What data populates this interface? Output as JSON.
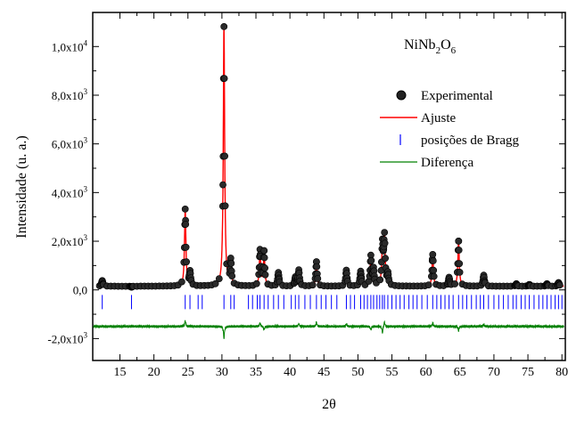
{
  "chart_data": {
    "type": "scatter",
    "title": "",
    "annotation": "NiNb2O6",
    "annotation_parts": {
      "base1": "NiNb",
      "sub1": "2",
      "base2": "O",
      "sub2": "6"
    },
    "xlabel": "2θ",
    "ylabel": "Intensidade (u. a.)",
    "xlim": [
      11,
      80.5
    ],
    "ylim": [
      -2900,
      11400
    ],
    "x_ticks": [
      15,
      20,
      25,
      30,
      35,
      40,
      45,
      50,
      55,
      60,
      65,
      70,
      75,
      80
    ],
    "x_tick_labels": [
      "15",
      "20",
      "25",
      "30",
      "35",
      "40",
      "45",
      "50",
      "55",
      "60",
      "65",
      "70",
      "75",
      "80"
    ],
    "y_ticks": [
      -2000,
      0,
      2000,
      4000,
      6000,
      8000,
      10000
    ],
    "y_tick_labels": [
      {
        "base": "-2,0x10",
        "exp": "3"
      },
      {
        "base": "0,0",
        "exp": ""
      },
      {
        "base": "2,0x10",
        "exp": "3"
      },
      {
        "base": "4,0x10",
        "exp": "3"
      },
      {
        "base": "6,0x10",
        "exp": "3"
      },
      {
        "base": "8,0x10",
        "exp": "3"
      },
      {
        "base": "1,0x10",
        "exp": "4"
      }
    ],
    "legend_position": "top-right",
    "series": [
      {
        "name": "Experimental",
        "kind": "scatter",
        "color": "#000000"
      },
      {
        "name": "Ajuste",
        "kind": "line",
        "color": "#ff0000"
      },
      {
        "name": "posições de Bragg",
        "kind": "ticks",
        "color": "#0000ff"
      },
      {
        "name": "Diferença",
        "kind": "line",
        "color": "#008000"
      }
    ],
    "background_level": 150,
    "peaks": [
      {
        "x": 12.4,
        "y": 380
      },
      {
        "x": 16.7,
        "y": 110
      },
      {
        "x": 24.6,
        "y": 3300
      },
      {
        "x": 25.3,
        "y": 700
      },
      {
        "x": 30.3,
        "y": 10800
      },
      {
        "x": 31.3,
        "y": 1150
      },
      {
        "x": 35.6,
        "y": 1600
      },
      {
        "x": 36.2,
        "y": 1550
      },
      {
        "x": 38.3,
        "y": 700
      },
      {
        "x": 40.8,
        "y": 500
      },
      {
        "x": 41.3,
        "y": 800
      },
      {
        "x": 43.9,
        "y": 1150
      },
      {
        "x": 48.3,
        "y": 800
      },
      {
        "x": 50.4,
        "y": 750
      },
      {
        "x": 51.9,
        "y": 1350
      },
      {
        "x": 52.3,
        "y": 800
      },
      {
        "x": 53.6,
        "y": 1800
      },
      {
        "x": 53.9,
        "y": 2100
      },
      {
        "x": 54.4,
        "y": 600
      },
      {
        "x": 61.0,
        "y": 1450
      },
      {
        "x": 63.4,
        "y": 500
      },
      {
        "x": 64.8,
        "y": 2000
      },
      {
        "x": 68.5,
        "y": 600
      },
      {
        "x": 73.3,
        "y": 250
      },
      {
        "x": 75.2,
        "y": 220
      },
      {
        "x": 77.8,
        "y": 250
      },
      {
        "x": 79.5,
        "y": 300
      }
    ],
    "bragg_row_y": -500,
    "bragg_positions": [
      12.4,
      16.7,
      24.6,
      25.3,
      26.5,
      27.1,
      30.3,
      31.3,
      31.8,
      33.9,
      34.5,
      35.2,
      35.6,
      36.2,
      36.8,
      37.6,
      38.3,
      39.1,
      40.2,
      40.8,
      41.3,
      42.2,
      43.0,
      43.9,
      44.6,
      45.3,
      46.1,
      46.9,
      48.3,
      48.9,
      49.5,
      50.4,
      50.9,
      51.4,
      51.9,
      52.3,
      52.8,
      53.2,
      53.6,
      53.9,
      54.4,
      55.0,
      55.6,
      56.2,
      56.8,
      57.5,
      58.1,
      58.7,
      59.4,
      60.2,
      61.0,
      61.6,
      62.2,
      62.8,
      63.4,
      64.0,
      64.8,
      65.4,
      66.0,
      66.7,
      67.4,
      68.0,
      68.5,
      69.2,
      70.0,
      70.7,
      71.4,
      72.1,
      72.8,
      73.3,
      74.0,
      74.6,
      75.2,
      75.9,
      76.6,
      77.2,
      77.8,
      78.4,
      79.0,
      79.5,
      80.0
    ],
    "difference_baseline": -1500,
    "difference_spikes": [
      {
        "x": 24.6,
        "dy": 250
      },
      {
        "x": 30.3,
        "dy": -500
      },
      {
        "x": 35.6,
        "dy": 150
      },
      {
        "x": 36.2,
        "dy": -150
      },
      {
        "x": 41.3,
        "dy": 120
      },
      {
        "x": 43.9,
        "dy": 180
      },
      {
        "x": 48.3,
        "dy": 120
      },
      {
        "x": 51.9,
        "dy": -150
      },
      {
        "x": 53.6,
        "dy": -280
      },
      {
        "x": 53.9,
        "dy": 200
      },
      {
        "x": 61.0,
        "dy": 150
      },
      {
        "x": 64.8,
        "dy": -180
      },
      {
        "x": 68.5,
        "dy": 80
      }
    ],
    "grid": false
  }
}
